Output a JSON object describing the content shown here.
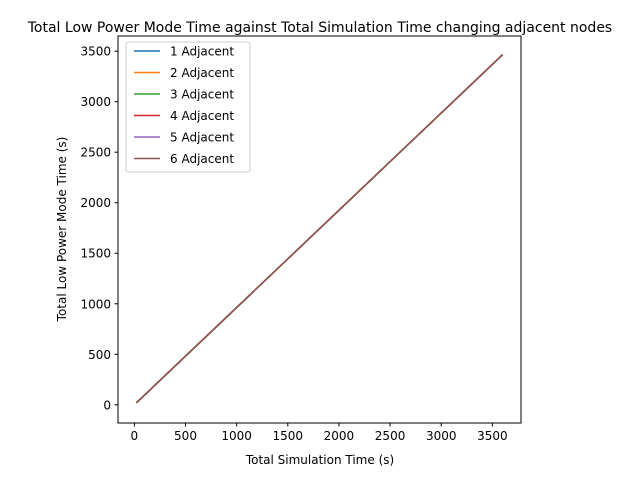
{
  "chart_data": {
    "type": "line",
    "title": "Total Low Power Mode Time against Total Simulation Time changing adjacent nodes",
    "xlabel": "Total Simulation Time (s)",
    "ylabel": "Total Low Power Mode Time (s)",
    "xlim": [
      -160,
      3780
    ],
    "ylim": [
      -180,
      3650
    ],
    "xticks": [
      0,
      500,
      1000,
      1500,
      2000,
      2500,
      3000,
      3500
    ],
    "yticks": [
      0,
      500,
      1000,
      1500,
      2000,
      2500,
      3000,
      3500
    ],
    "grid": false,
    "legend_position": "upper-left",
    "series": [
      {
        "name": "1 Adjacent",
        "color": "#1f77b4",
        "x": [
          20,
          3600
        ],
        "y": [
          20,
          3465
        ]
      },
      {
        "name": "2 Adjacent",
        "color": "#ff7f0e",
        "x": [
          20,
          3600
        ],
        "y": [
          20,
          3465
        ]
      },
      {
        "name": "3 Adjacent",
        "color": "#2ca02c",
        "x": [
          20,
          3600
        ],
        "y": [
          20,
          3465
        ]
      },
      {
        "name": "4 Adjacent",
        "color": "#d62728",
        "x": [
          20,
          3600
        ],
        "y": [
          20,
          3465
        ]
      },
      {
        "name": "5 Adjacent",
        "color": "#9467bd",
        "x": [
          20,
          3600
        ],
        "y": [
          20,
          3465
        ]
      },
      {
        "name": "6 Adjacent",
        "color": "#8c564b",
        "x": [
          20,
          3600
        ],
        "y": [
          20,
          3465
        ]
      }
    ]
  }
}
